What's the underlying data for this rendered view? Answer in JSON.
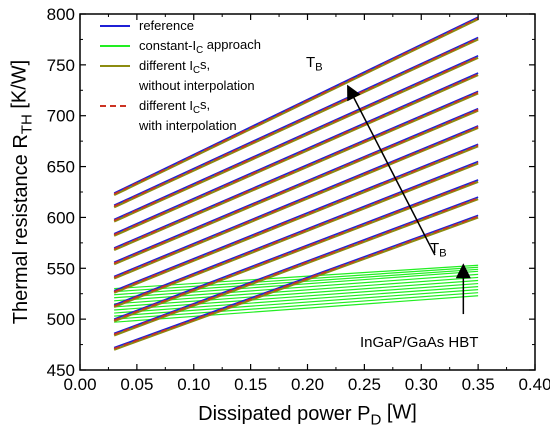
{
  "chart_data": {
    "type": "line",
    "xlabel": {
      "main": "Dissipated power P",
      "sub": "D",
      "unit": " [W]"
    },
    "ylabel": {
      "main": "Thermal resistance R",
      "sub": "TH",
      "unit": " [K/W]"
    },
    "xlim": [
      0.0,
      0.4
    ],
    "ylim": [
      450,
      800
    ],
    "xticks": [
      "0.00",
      "0.05",
      "0.10",
      "0.15",
      "0.20",
      "0.25",
      "0.30",
      "0.35",
      "0.40"
    ],
    "yticks": [
      "450",
      "500",
      "550",
      "600",
      "650",
      "700",
      "750",
      "800"
    ],
    "grid": false,
    "legend_position": "top-left",
    "colors": {
      "reference": "#1f1fd6",
      "constant_ic": "#22ee22",
      "different_ic_no_interp": "#8c8c10",
      "different_ic_interp": "#cc3322",
      "axis": "#000000"
    },
    "legend": [
      {
        "key": "reference",
        "style": "solid",
        "lines": [
          {
            "text": "reference"
          }
        ]
      },
      {
        "key": "constant_ic",
        "style": "solid",
        "lines": [
          {
            "text": "constant-I",
            "sub": "C",
            "tail": " approach"
          }
        ]
      },
      {
        "key": "different_ic_no_interp",
        "style": "solid",
        "lines": [
          {
            "text": "different I",
            "sub": "C",
            "tail": "s,"
          },
          {
            "text": "without interpolation"
          }
        ]
      },
      {
        "key": "different_ic_interp",
        "style": "dashed",
        "lines": [
          {
            "text": "different I",
            "sub": "C",
            "tail": "s,"
          },
          {
            "text": "with interpolation"
          }
        ]
      }
    ],
    "annotations": [
      {
        "name": "tb-upper-label",
        "text": "T",
        "sub": "B"
      },
      {
        "name": "tb-lower-label",
        "text": "T",
        "sub": "B"
      },
      {
        "name": "device-label",
        "text": "InGaP/GaAs HBT"
      }
    ],
    "arrows": [
      {
        "name": "tb-upper-arrow",
        "from": [
          0.312,
          563
        ],
        "to": [
          0.236,
          728
        ]
      },
      {
        "name": "tb-lower-arrow",
        "from": [
          0.337,
          505
        ],
        "to": [
          0.337,
          552
        ]
      }
    ],
    "series_groups": {
      "family_x": [
        0.03,
        0.35
      ],
      "reference_family": {
        "description_free": true,
        "y_at_start": [
          470,
          484,
          498,
          512,
          526,
          540,
          554,
          568,
          582,
          596,
          610,
          622
        ],
        "y_at_end": [
          600,
          618,
          635,
          653,
          670,
          688,
          705,
          722,
          740,
          757,
          775,
          795
        ]
      },
      "constant_ic_family": {
        "y_at_start": [
          497,
          500,
          503,
          506,
          509,
          512,
          515,
          518,
          521,
          524,
          527,
          530
        ],
        "y_at_end": [
          523,
          526,
          529,
          532,
          535,
          538,
          541,
          544,
          547,
          549,
          551,
          553
        ]
      }
    }
  }
}
